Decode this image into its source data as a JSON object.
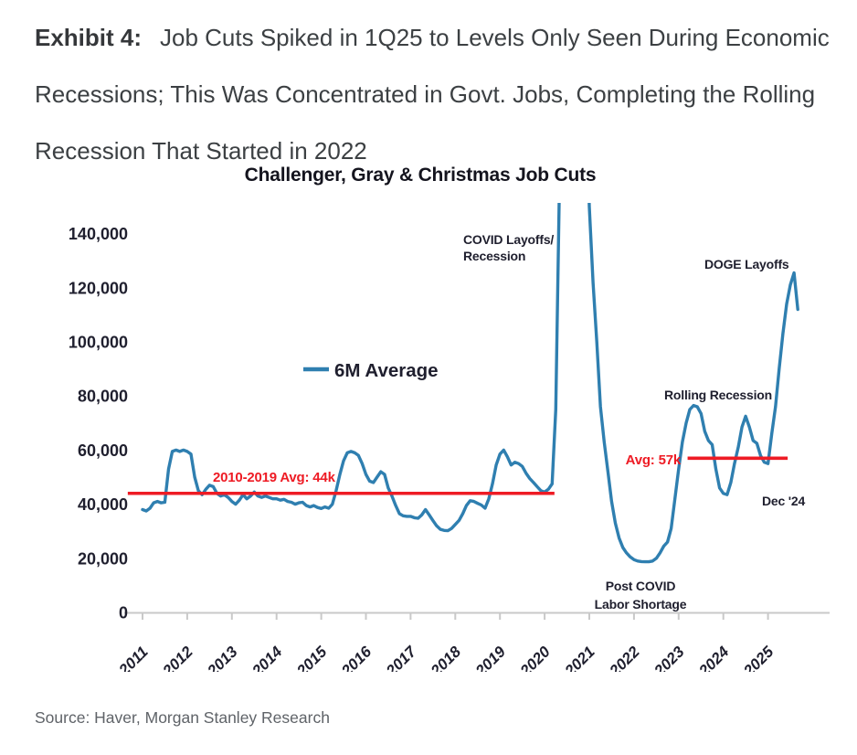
{
  "page": {
    "exhibit_label": "Exhibit 4:",
    "exhibit_title": "Job Cuts Spiked in 1Q25 to Levels Only Seen During Economic Recessions; This Was Concentrated in Govt. Jobs, Completing the Rolling Recession That Started in 2022",
    "source": "Source: Haver, Morgan Stanley Research"
  },
  "colors": {
    "series_blue": "#2f7fb0",
    "reference_red": "#ee1b24",
    "annotation_dark": "#1f1f2e",
    "axis_line_gray": "#c9c9c9",
    "title_gray": "#3c4043",
    "source_gray": "#5f6368"
  },
  "chart_data": {
    "type": "line",
    "title": "Challenger, Gray & Christmas Job Cuts",
    "legend": {
      "label": "6M Average",
      "position": "center-left"
    },
    "x_axis": {
      "tick_labels": [
        "2011",
        "2012",
        "2013",
        "2014",
        "2015",
        "2016",
        "2017",
        "2018",
        "2019",
        "2020",
        "2021",
        "2022",
        "2023",
        "2024",
        "2025"
      ],
      "range_years": [
        2010.6,
        2026.1
      ],
      "label_rotation_deg": -45
    },
    "y_axis": {
      "tick_labels": [
        "0",
        "20,000",
        "40,000",
        "60,000",
        "80,000",
        "100,000",
        "120,000",
        "140,000"
      ],
      "tick_values": [
        0,
        20000,
        40000,
        60000,
        80000,
        100000,
        120000,
        140000
      ],
      "range": [
        0,
        150000
      ],
      "grid": false
    },
    "series": [
      {
        "name": "6M Average",
        "unit": "job cuts per month, thousands (6-month moving average)",
        "start_year": 2011,
        "points_per_year": 12,
        "clipped_above_thousands": 150,
        "values_thousands": [
          38,
          37.5,
          38.5,
          40.5,
          41,
          40.5,
          40.7,
          53,
          59.5,
          60,
          59.5,
          60,
          59.5,
          58.5,
          50,
          45,
          43.5,
          45.5,
          47,
          46.5,
          44,
          43,
          43.5,
          42.5,
          41,
          40,
          41.5,
          43.5,
          42,
          43,
          44.5,
          43,
          42.5,
          43,
          42.5,
          42,
          42,
          41.5,
          41.8,
          41,
          40.7,
          40,
          40.5,
          40.7,
          39.5,
          39,
          39.5,
          38.8,
          38.4,
          39,
          38.5,
          40,
          45,
          51,
          56,
          59,
          59.5,
          59,
          58,
          55,
          51,
          48.5,
          48,
          50,
          52,
          51,
          46,
          43,
          39.5,
          36.5,
          35.7,
          35.5,
          35.5,
          35,
          34.8,
          36,
          38,
          36,
          34,
          32,
          30.7,
          30.3,
          30.2,
          31,
          32.5,
          34,
          36.5,
          39.5,
          41.3,
          41,
          40.3,
          39.7,
          38.5,
          42,
          47.5,
          54.5,
          58.5,
          60,
          57.5,
          54.5,
          55.5,
          55,
          54,
          51.5,
          49.5,
          48,
          46.5,
          45,
          44.5,
          45.5,
          47.5,
          75,
          160,
          280,
          340,
          350,
          350,
          340,
          290,
          200,
          150,
          122,
          100,
          76,
          63,
          52,
          41,
          33,
          27.5,
          24,
          22,
          20.5,
          19.5,
          19,
          18.8,
          18.7,
          18.7,
          19,
          20,
          22,
          24.5,
          26,
          31,
          42,
          53,
          63,
          70,
          75,
          76.5,
          76,
          73.5,
          67,
          63.5,
          62,
          53,
          46,
          44,
          43.5,
          48,
          55,
          61,
          68.5,
          72.5,
          68.5,
          63.5,
          62.5,
          58,
          55.5,
          55,
          66,
          76,
          90,
          103,
          114,
          121,
          125.5,
          112
        ]
      }
    ],
    "reference_lines": [
      {
        "label": "2010-2019 Avg: 44k",
        "value": 44000,
        "from_year": 2010.67,
        "to_year": 2020.22
      },
      {
        "label": "Avg: 57k",
        "value": 57000,
        "from_year": 2023.2,
        "to_year": 2025.44
      }
    ],
    "annotations": {
      "covid_line1": "COVID Layoffs/",
      "covid_line2": "Recession",
      "doge": "DOGE Layoffs",
      "rolling_recession": "Rolling Recession",
      "dec_24": "Dec '24",
      "post_covid_line1": "Post COVID",
      "post_covid_line2": "Labor Shortage"
    }
  }
}
